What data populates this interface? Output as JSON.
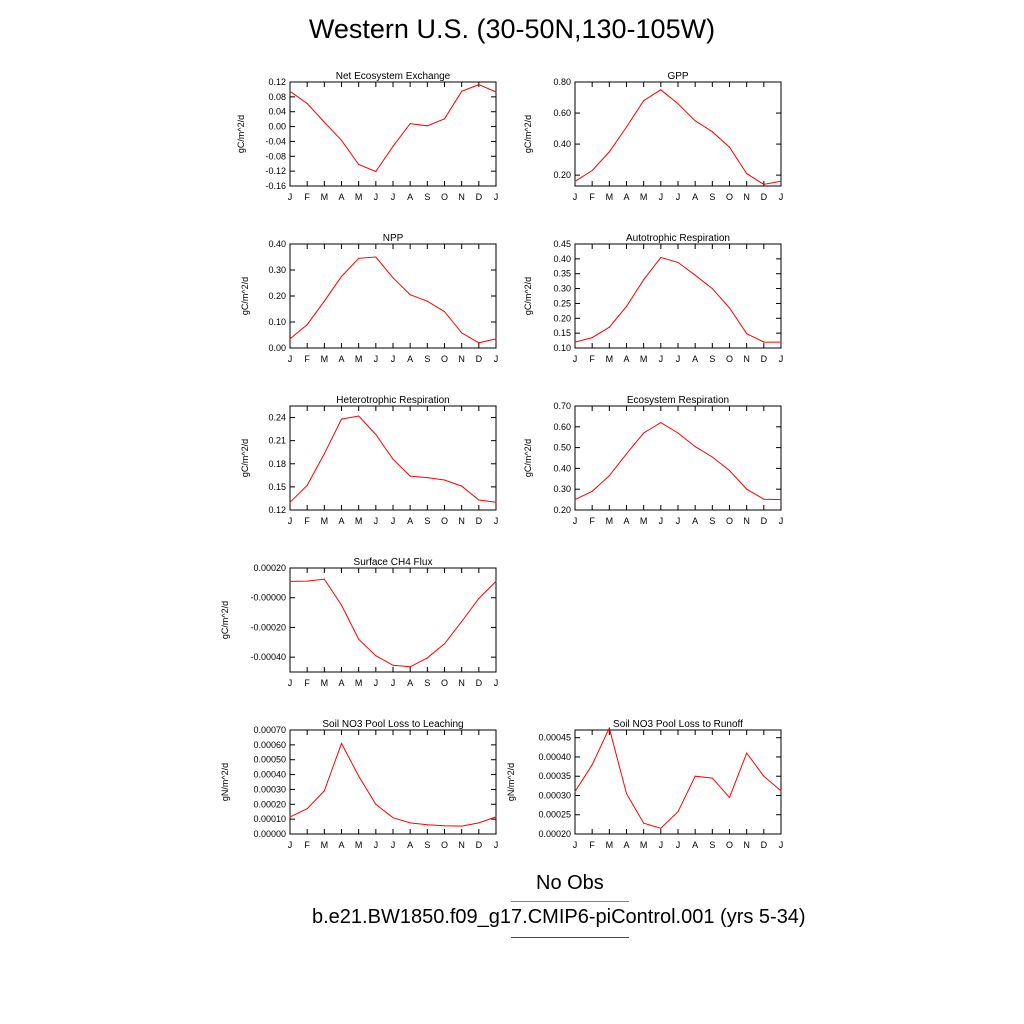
{
  "title": "Western U.S. (30-50N,130-105W)",
  "colors": {
    "model_line": "#ff0000",
    "obs_line": "#7070ff",
    "axis": "#000000"
  },
  "legend": {
    "obs_label": "No Obs",
    "model_label": "b.e21.BW1850.f09_g17.CMIP6-piControl.001 (yrs 5-34)"
  },
  "months": [
    "J",
    "F",
    "M",
    "A",
    "M",
    "J",
    "J",
    "A",
    "S",
    "O",
    "N",
    "D",
    "J"
  ],
  "chart_data": [
    {
      "type": "line",
      "title": "Net Ecosystem Exchange",
      "ylabel": "gC/m^2/d",
      "ylim": [
        -0.16,
        0.12
      ],
      "yticks": [
        0.12,
        0.08,
        0.04,
        0.0,
        -0.04,
        -0.08,
        -0.12,
        -0.16
      ],
      "ytick_labels": [
        "0.12",
        "0.08",
        "0.04",
        "0.00",
        "-0.04",
        "-0.08",
        "-0.12",
        "-0.16"
      ],
      "values": [
        0.095,
        0.062,
        0.012,
        -0.037,
        -0.102,
        -0.121,
        -0.053,
        0.008,
        0.002,
        0.021,
        0.095,
        0.113,
        0.093
      ]
    },
    {
      "type": "line",
      "title": "GPP",
      "ylabel": "gC/m^2/d",
      "ylim": [
        0.13,
        0.8
      ],
      "yticks": [
        0.8,
        0.6,
        0.4,
        0.2
      ],
      "ytick_labels": [
        "0.80",
        "0.60",
        "0.40",
        "0.20"
      ],
      "values": [
        0.16,
        0.23,
        0.35,
        0.51,
        0.68,
        0.75,
        0.66,
        0.55,
        0.48,
        0.38,
        0.21,
        0.14,
        0.16
      ]
    },
    {
      "type": "line",
      "title": "NPP",
      "ylabel": "gC/m^2/d",
      "ylim": [
        0.0,
        0.4
      ],
      "yticks": [
        0.4,
        0.3,
        0.2,
        0.1,
        0.0
      ],
      "ytick_labels": [
        "0.40",
        "0.30",
        "0.20",
        "0.10",
        "0.00"
      ],
      "values": [
        0.035,
        0.09,
        0.18,
        0.275,
        0.345,
        0.35,
        0.27,
        0.205,
        0.18,
        0.14,
        0.058,
        0.02,
        0.035
      ]
    },
    {
      "type": "line",
      "title": "Autotrophic Respiration",
      "ylabel": "gC/m^2/d",
      "ylim": [
        0.1,
        0.45
      ],
      "yticks": [
        0.45,
        0.4,
        0.35,
        0.3,
        0.25,
        0.2,
        0.15,
        0.1
      ],
      "ytick_labels": [
        "0.45",
        "0.40",
        "0.35",
        "0.30",
        "0.25",
        "0.20",
        "0.15",
        "0.10"
      ],
      "values": [
        0.12,
        0.135,
        0.17,
        0.24,
        0.33,
        0.405,
        0.388,
        0.345,
        0.3,
        0.235,
        0.148,
        0.12,
        0.12
      ]
    },
    {
      "type": "line",
      "title": "Heterotrophic Respiration",
      "ylabel": "gC/m^2/d",
      "ylim": [
        0.12,
        0.255
      ],
      "yticks": [
        0.24,
        0.21,
        0.18,
        0.15,
        0.12
      ],
      "ytick_labels": [
        "0.24",
        "0.21",
        "0.18",
        "0.15",
        "0.12"
      ],
      "values": [
        0.13,
        0.152,
        0.193,
        0.238,
        0.242,
        0.218,
        0.186,
        0.164,
        0.162,
        0.159,
        0.151,
        0.133,
        0.13
      ]
    },
    {
      "type": "line",
      "title": "Ecosystem Respiration",
      "ylabel": "gC/m^2/d",
      "ylim": [
        0.2,
        0.7
      ],
      "yticks": [
        0.7,
        0.6,
        0.5,
        0.4,
        0.3,
        0.2
      ],
      "ytick_labels": [
        "0.70",
        "0.60",
        "0.50",
        "0.40",
        "0.30",
        "0.20"
      ],
      "values": [
        0.25,
        0.29,
        0.365,
        0.47,
        0.57,
        0.62,
        0.57,
        0.505,
        0.455,
        0.39,
        0.3,
        0.252,
        0.25
      ]
    },
    {
      "type": "line",
      "title": "Surface CH4 Flux",
      "ylabel": "gC/m^2/d",
      "ylim": [
        -0.0005,
        0.0002
      ],
      "yticks": [
        0.0002,
        0.0,
        -0.0002,
        -0.0004
      ],
      "ytick_labels": [
        "0.00020",
        "-0.00000",
        "-0.00020",
        "-0.00040"
      ],
      "values": [
        0.00011,
        0.000112,
        0.000125,
        -5e-05,
        -0.00028,
        -0.00039,
        -0.000455,
        -0.000465,
        -0.000405,
        -0.00031,
        -0.00016,
        -5e-06,
        0.00011
      ]
    },
    {
      "type": "line",
      "title": "Soil NO3 Pool Loss to Leaching",
      "ylabel": "gN/m^2/d",
      "ylim": [
        0.0,
        0.0007
      ],
      "yticks": [
        0.0007,
        0.0006,
        0.0005,
        0.0004,
        0.0003,
        0.0002,
        0.0001,
        0.0
      ],
      "ytick_labels": [
        "0.00070",
        "0.00060",
        "0.00050",
        "0.00040",
        "0.00030",
        "0.00020",
        "0.00010",
        "0.00000"
      ],
      "values": [
        0.000115,
        0.00017,
        0.00029,
        0.00061,
        0.00039,
        0.0002,
        0.00011,
        7.5e-05,
        6.2e-05,
        5.5e-05,
        5.3e-05,
        7.5e-05,
        0.000115
      ]
    },
    {
      "type": "line",
      "title": "Soil NO3 Pool Loss to Runoff",
      "ylabel": "gN/m^2/d",
      "ylim": [
        0.0002,
        0.00047
      ],
      "yticks": [
        0.00045,
        0.0004,
        0.00035,
        0.0003,
        0.00025,
        0.0002
      ],
      "ytick_labels": [
        "0.00045",
        "0.00040",
        "0.00035",
        "0.00030",
        "0.00025",
        "0.00020"
      ],
      "values": [
        0.00031,
        0.00038,
        0.000475,
        0.000305,
        0.000228,
        0.000215,
        0.000258,
        0.00035,
        0.000345,
        0.000295,
        0.00041,
        0.00035,
        0.000312
      ]
    }
  ]
}
